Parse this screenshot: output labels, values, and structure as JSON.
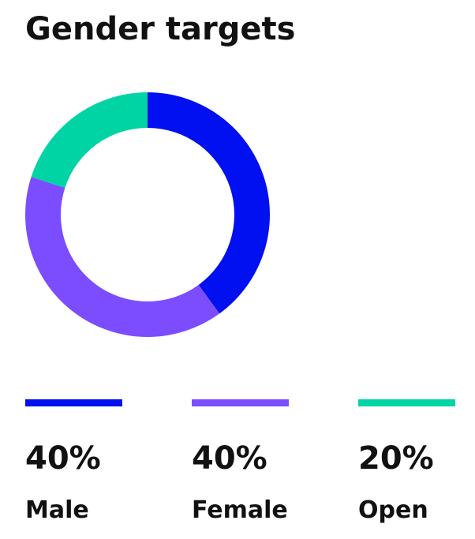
{
  "chart_data": {
    "type": "pie",
    "donut": true,
    "title": "Gender targets",
    "categories": [
      "Male",
      "Female",
      "Open"
    ],
    "values": [
      40,
      40,
      20
    ],
    "value_labels": [
      "40%",
      "40%",
      "20%"
    ],
    "colors": [
      "#0010f0",
      "#7b4dff",
      "#00d4a4"
    ]
  }
}
